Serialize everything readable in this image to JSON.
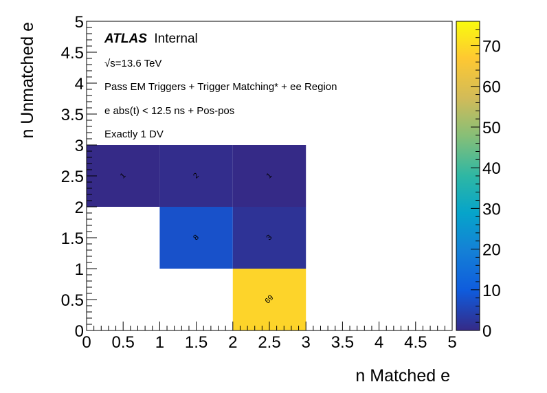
{
  "chart_data": {
    "type": "heatmap",
    "xlabel": "n Matched e",
    "ylabel": "n Unmatched e",
    "xlim": [
      0,
      5
    ],
    "ylim": [
      0,
      5
    ],
    "x_tick_labels": [
      "0",
      "0.5",
      "1",
      "1.5",
      "2",
      "2.5",
      "3",
      "3.5",
      "4",
      "4.5",
      "5"
    ],
    "y_tick_labels": [
      "0",
      "0.5",
      "1",
      "1.5",
      "2",
      "2.5",
      "3",
      "3.5",
      "4",
      "4.5",
      "5"
    ],
    "colorbar": {
      "range": [
        0,
        76
      ],
      "ticks": [
        "0",
        "10",
        "20",
        "30",
        "40",
        "50",
        "60",
        "70"
      ]
    },
    "cells": [
      {
        "x": [
          0,
          1
        ],
        "y": [
          2,
          3
        ],
        "value": 1
      },
      {
        "x": [
          1,
          2
        ],
        "y": [
          2,
          3
        ],
        "value": 2
      },
      {
        "x": [
          2,
          3
        ],
        "y": [
          2,
          3
        ],
        "value": 1
      },
      {
        "x": [
          1,
          2
        ],
        "y": [
          1,
          2
        ],
        "value": 8
      },
      {
        "x": [
          2,
          3
        ],
        "y": [
          1,
          2
        ],
        "value": 3
      },
      {
        "x": [
          2,
          3
        ],
        "y": [
          0,
          1
        ],
        "value": 69
      }
    ],
    "annotations": {
      "atlas": "ATLAS",
      "internal": "Internal",
      "energy_sqrt": "√s",
      "energy": "=13.6 TeV",
      "selection": "Pass EM Triggers + Trigger Matching* + ee Region",
      "timing": "e abs(t) < 12.5 ns + Pos-pos",
      "dv": "Exactly 1 DV"
    }
  }
}
